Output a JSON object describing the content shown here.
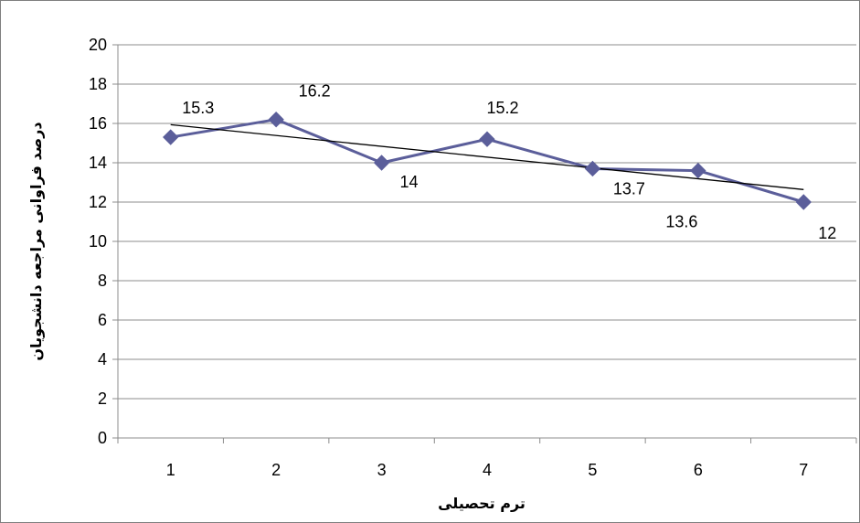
{
  "chart_data": {
    "type": "line",
    "xlabel": "ترم تحصیلی",
    "ylabel": "درصد فراوانی مراجعه دانشجویان",
    "categories": [
      "1",
      "2",
      "3",
      "4",
      "5",
      "6",
      "7"
    ],
    "series": [
      {
        "values": [
          15.3,
          16.2,
          14,
          15.2,
          13.7,
          13.6,
          12
        ],
        "color": "#5b5e9a",
        "marker": "diamond"
      }
    ],
    "data_labels": [
      "15.3",
      "16.2",
      "14",
      "15.2",
      "13.7",
      "13.6",
      "12"
    ],
    "trendline": {
      "type": "linear",
      "color": "#000000"
    },
    "ylim": [
      0,
      20
    ],
    "yticks": [
      "0",
      "2",
      "4",
      "6",
      "8",
      "10",
      "12",
      "14",
      "16",
      "18",
      "20"
    ],
    "grid": true,
    "legend": "none"
  }
}
